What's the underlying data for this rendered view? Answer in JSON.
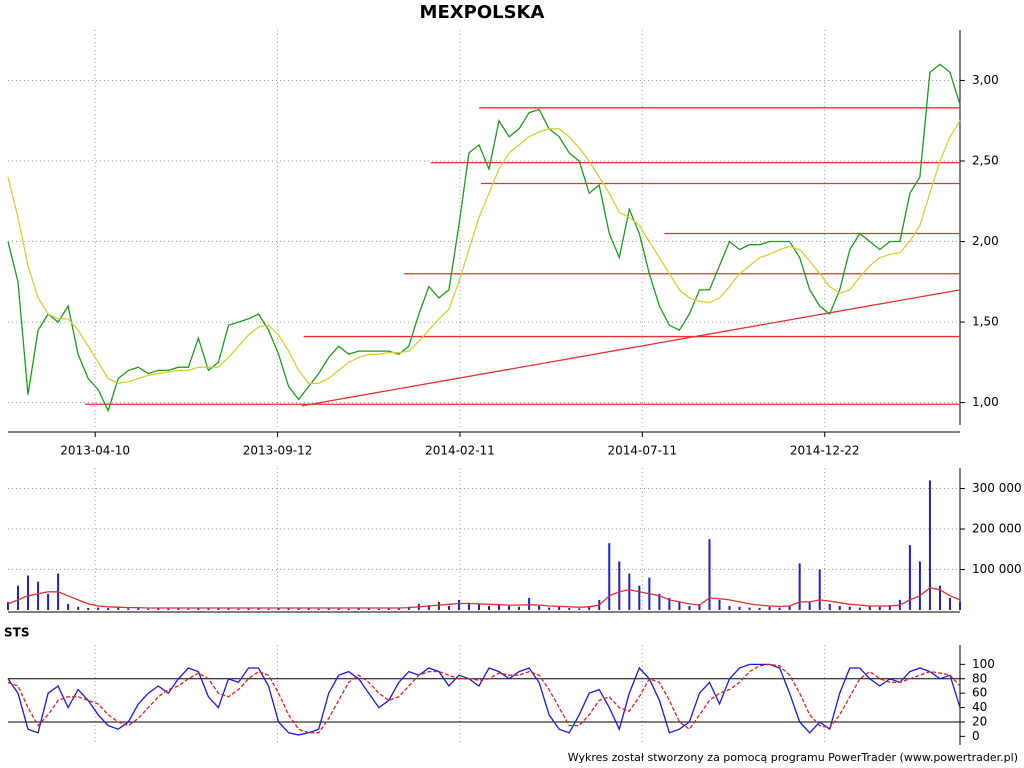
{
  "chart_data": [
    {
      "type": "line",
      "title": "MEXPOLSKA",
      "xlim": [
        0,
        95
      ],
      "xticks": [
        {
          "value": 8.7,
          "label": "2013-04-10"
        },
        {
          "value": 26.9,
          "label": "2013-09-12"
        },
        {
          "value": 45.1,
          "label": "2014-02-11"
        },
        {
          "value": 63.3,
          "label": "2014-07-11"
        },
        {
          "value": 81.5,
          "label": "2014-12-22"
        }
      ],
      "ylim": [
        0.83,
        3.22
      ],
      "yticks": [
        {
          "value": 1,
          "label": "1,00"
        },
        {
          "value": 1.5,
          "label": "1,50"
        },
        {
          "value": 2,
          "label": "2,00"
        },
        {
          "value": 2.5,
          "label": "2,50"
        },
        {
          "value": 3,
          "label": "3,00"
        }
      ],
      "grid": true,
      "series": [
        {
          "color": "#1f9a1f",
          "values": [
            2.0,
            1.75,
            1.05,
            1.45,
            1.55,
            1.5,
            1.6,
            1.3,
            1.15,
            1.08,
            0.95,
            1.15,
            1.2,
            1.22,
            1.18,
            1.2,
            1.2,
            1.22,
            1.22,
            1.4,
            1.2,
            1.25,
            1.48,
            1.5,
            1.52,
            1.55,
            1.45,
            1.3,
            1.1,
            1.02,
            1.1,
            1.18,
            1.28,
            1.35,
            1.3,
            1.32,
            1.32,
            1.32,
            1.32,
            1.3,
            1.35,
            1.55,
            1.72,
            1.65,
            1.7,
            2.1,
            2.55,
            2.6,
            2.45,
            2.75,
            2.65,
            2.7,
            2.8,
            2.82,
            2.7,
            2.65,
            2.55,
            2.5,
            2.3,
            2.35,
            2.05,
            1.9,
            2.2,
            2.05,
            1.8,
            1.6,
            1.48,
            1.45,
            1.55,
            1.7,
            1.7,
            1.85,
            2.0,
            1.95,
            1.98,
            1.98,
            2.0,
            2.0,
            2.0,
            1.9,
            1.7,
            1.6,
            1.55,
            1.7,
            1.95,
            2.05,
            2.0,
            1.95,
            2.0,
            2.0,
            2.3,
            2.4,
            3.05,
            3.1,
            3.05,
            2.85
          ]
        },
        {
          "color": "#d8cc3a",
          "values": [
            2.4,
            2.15,
            1.85,
            1.65,
            1.55,
            1.52,
            1.52,
            1.45,
            1.35,
            1.25,
            1.15,
            1.12,
            1.13,
            1.15,
            1.17,
            1.18,
            1.19,
            1.2,
            1.2,
            1.22,
            1.22,
            1.22,
            1.28,
            1.35,
            1.42,
            1.47,
            1.48,
            1.42,
            1.32,
            1.2,
            1.12,
            1.12,
            1.15,
            1.2,
            1.25,
            1.28,
            1.3,
            1.3,
            1.31,
            1.31,
            1.32,
            1.38,
            1.45,
            1.52,
            1.58,
            1.75,
            1.95,
            2.15,
            2.3,
            2.45,
            2.55,
            2.6,
            2.65,
            2.68,
            2.7,
            2.7,
            2.65,
            2.58,
            2.5,
            2.4,
            2.3,
            2.18,
            2.15,
            2.1,
            2.0,
            1.9,
            1.8,
            1.7,
            1.65,
            1.63,
            1.62,
            1.65,
            1.72,
            1.8,
            1.85,
            1.9,
            1.92,
            1.95,
            1.97,
            1.95,
            1.88,
            1.8,
            1.72,
            1.68,
            1.7,
            1.78,
            1.85,
            1.9,
            1.92,
            1.93,
            2.0,
            2.1,
            2.3,
            2.5,
            2.65,
            2.75
          ]
        }
      ],
      "hline_color": "#e83030",
      "hlines": [
        {
          "y": 0.99,
          "x0": 7.7
        },
        {
          "y": 1.41,
          "x0": 29.5
        },
        {
          "y": 1.8,
          "x0": 39.5
        },
        {
          "y": 2.05,
          "x0": 65.5
        },
        {
          "y": 2.36,
          "x0": 47.2
        },
        {
          "y": 2.49,
          "x0": 42.2
        },
        {
          "y": 2.83,
          "x0": 47
        }
      ],
      "trendline": {
        "x": [
          29.3,
          95
        ],
        "y": [
          0.98,
          1.7
        ]
      }
    },
    {
      "type": "bar",
      "xlim": [
        0,
        95
      ],
      "ylim": [
        0,
        326000
      ],
      "yticks": [
        {
          "value": 100000,
          "label": "100 000"
        },
        {
          "value": 200000,
          "label": "200 000"
        },
        {
          "value": 300000,
          "label": "300 000"
        }
      ],
      "grid": true,
      "series": [
        {
          "type": "bar",
          "color": "#2020c0",
          "values": [
            20000,
            60000,
            85000,
            70000,
            40000,
            90000,
            15000,
            8000,
            5000,
            6000,
            5000,
            6000,
            4000,
            5000,
            3000,
            4000,
            5000,
            6000,
            3000,
            5000,
            6000,
            4000,
            5000,
            3000,
            4000,
            5000,
            3000,
            4000,
            6000,
            5000,
            4000,
            3000,
            5000,
            4000,
            3000,
            5000,
            4000,
            3000,
            6000,
            5000,
            8000,
            15000,
            12000,
            20000,
            10000,
            25000,
            18000,
            15000,
            10000,
            12000,
            10000,
            8000,
            30000,
            10000,
            6000,
            8000,
            5000,
            4000,
            10000,
            25000,
            165000,
            120000,
            90000,
            60000,
            80000,
            40000,
            30000,
            20000,
            10000,
            15000,
            175000,
            25000,
            10000,
            8000,
            6000,
            5000,
            8000,
            6000,
            10000,
            115000,
            20000,
            100000,
            15000,
            10000,
            8000,
            6000,
            10000,
            8000,
            12000,
            25000,
            160000,
            120000,
            320000,
            60000,
            30000,
            20000
          ]
        },
        {
          "type": "line",
          "color": "#e03030",
          "values": [
            15000,
            25000,
            35000,
            40000,
            45000,
            45000,
            35000,
            25000,
            15000,
            10000,
            8000,
            7000,
            6000,
            6000,
            5000,
            5000,
            5000,
            5000,
            5000,
            5000,
            5000,
            5000,
            5000,
            5000,
            5000,
            5000,
            5000,
            5000,
            5000,
            5000,
            5000,
            5000,
            5000,
            5000,
            5000,
            5000,
            5000,
            5000,
            5000,
            5000,
            6000,
            8000,
            10000,
            12000,
            14000,
            16000,
            16000,
            15000,
            14000,
            13000,
            12000,
            12000,
            13000,
            12000,
            10000,
            9000,
            8000,
            7000,
            8000,
            12000,
            35000,
            45000,
            50000,
            45000,
            40000,
            35000,
            25000,
            20000,
            15000,
            12000,
            30000,
            28000,
            25000,
            20000,
            15000,
            12000,
            10000,
            9000,
            10000,
            20000,
            20000,
            25000,
            22000,
            18000,
            14000,
            12000,
            10000,
            10000,
            10000,
            12000,
            25000,
            35000,
            55000,
            50000,
            35000,
            25000
          ]
        }
      ]
    },
    {
      "type": "line",
      "title": "STS",
      "xlim": [
        0,
        95
      ],
      "ylim": [
        -12,
        113
      ],
      "yticks": [
        0,
        20,
        40,
        60,
        80,
        100
      ],
      "grid": true,
      "hlines": [
        20,
        80
      ],
      "series": [
        {
          "color": "#1a1ae0",
          "values": [
            80,
            60,
            10,
            5,
            60,
            70,
            40,
            65,
            50,
            30,
            15,
            10,
            20,
            45,
            60,
            70,
            60,
            80,
            95,
            90,
            55,
            40,
            80,
            75,
            95,
            95,
            70,
            20,
            5,
            2,
            5,
            10,
            60,
            85,
            90,
            80,
            60,
            40,
            50,
            75,
            90,
            85,
            95,
            90,
            70,
            85,
            80,
            70,
            95,
            90,
            80,
            90,
            95,
            75,
            30,
            10,
            5,
            30,
            60,
            65,
            40,
            10,
            60,
            95,
            80,
            50,
            5,
            10,
            20,
            60,
            75,
            45,
            80,
            95,
            100,
            100,
            100,
            95,
            60,
            20,
            5,
            20,
            10,
            60,
            95,
            95,
            80,
            70,
            80,
            75,
            90,
            95,
            90,
            80,
            85,
            40
          ]
        },
        {
          "color": "#e02020",
          "values": [
            75,
            70,
            40,
            15,
            30,
            50,
            55,
            55,
            50,
            45,
            30,
            20,
            15,
            25,
            40,
            55,
            65,
            70,
            80,
            88,
            80,
            60,
            55,
            65,
            80,
            90,
            85,
            60,
            30,
            10,
            5,
            5,
            25,
            50,
            75,
            85,
            75,
            60,
            50,
            55,
            70,
            85,
            90,
            90,
            85,
            80,
            80,
            78,
            80,
            88,
            85,
            85,
            90,
            85,
            65,
            40,
            15,
            15,
            30,
            50,
            55,
            40,
            35,
            55,
            80,
            75,
            50,
            20,
            10,
            30,
            50,
            60,
            65,
            75,
            90,
            98,
            100,
            98,
            85,
            60,
            30,
            15,
            12,
            30,
            55,
            80,
            90,
            80,
            75,
            75,
            80,
            85,
            90,
            88,
            85,
            70
          ]
        }
      ]
    }
  ],
  "footer": "Wykres został stworzony za pomocą programu PowerTrader (www.powertrader.pl)"
}
